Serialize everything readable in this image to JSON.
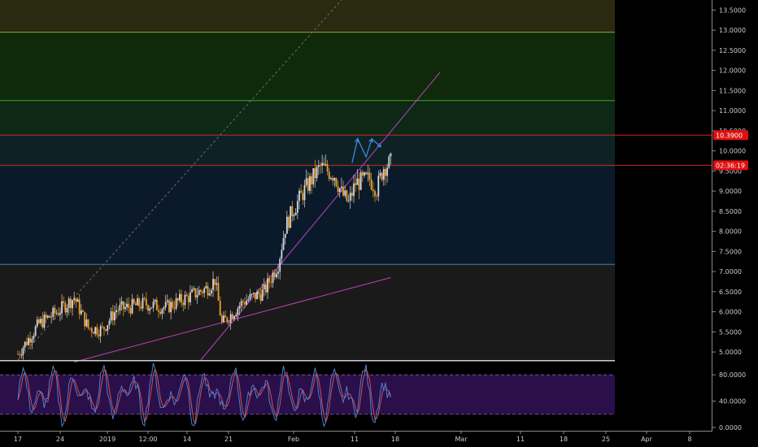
{
  "colors": {
    "background": "#000000",
    "candle_up": "#d8d8d8",
    "candle_down": "#f0a030",
    "trendline": "#c040c0",
    "projection": "#3f8fe0",
    "stoch_k": "#4a7fd0",
    "stoch_d": "#d05050",
    "stoch_band": "#2a0f4a",
    "zone_top": "#2a2a10",
    "zone_upper": "#0f2a0a",
    "zone_mid": "#0d2814",
    "zone_teal": "#0e2226",
    "zone_blue": "#0b1a2a",
    "zone_bottom": "#1a1a1a",
    "line_yellow": "#9aa030",
    "line_green": "#3faa2a",
    "line_red": "#c62828",
    "line_blue": "#3e7faa",
    "badge_red": "#e01010"
  },
  "price_axis": {
    "ticks": [
      "13.5000",
      "13.0000",
      "12.5000",
      "12.0000",
      "11.5000",
      "11.0000",
      "10.5000",
      "10.0000",
      "9.5000",
      "9.0000",
      "8.5000",
      "8.0000",
      "7.5000",
      "7.0000",
      "6.5000",
      "6.0000",
      "5.5000",
      "5.0000"
    ],
    "badges": [
      {
        "label": "10.3900",
        "value": 10.39
      },
      {
        "label": "02:36:19",
        "value": 9.64
      }
    ]
  },
  "stoch_axis": {
    "ticks": [
      "80.0000",
      "40.0000",
      "0.0000"
    ]
  },
  "time_axis": {
    "ticks": [
      "17",
      "24",
      "2019",
      "12:00",
      "14",
      "21",
      "Feb",
      "11",
      "18",
      "Mar",
      "11",
      "18",
      "25",
      "Apr",
      "8"
    ]
  },
  "chart_data": {
    "type": "candlestick",
    "symbol_pane": {
      "ylim": [
        4.8,
        13.75
      ],
      "horizontal_levels": [
        12.95,
        11.25,
        10.39,
        9.64,
        7.18
      ],
      "zones": [
        {
          "from": 12.95,
          "to": 13.75,
          "color": "zone_top"
        },
        {
          "from": 11.25,
          "to": 12.95,
          "color": "zone_upper"
        },
        {
          "from": 10.39,
          "to": 11.25,
          "color": "zone_mid"
        },
        {
          "from": 9.6,
          "to": 10.39,
          "color": "zone_teal"
        },
        {
          "from": 7.18,
          "to": 9.6,
          "color": "zone_blue"
        },
        {
          "from": 4.8,
          "to": 7.18,
          "color": "zone_bottom"
        }
      ],
      "trend_anchor_points": [
        {
          "day": 0,
          "close": 4.95
        },
        {
          "day": 3,
          "close": 5.7
        },
        {
          "day": 6,
          "close": 6.05
        },
        {
          "day": 8,
          "close": 6.35
        },
        {
          "day": 10,
          "close": 5.6
        },
        {
          "day": 12,
          "close": 5.55
        },
        {
          "day": 14,
          "close": 6.05
        },
        {
          "day": 18,
          "close": 6.2
        },
        {
          "day": 21,
          "close": 6.1
        },
        {
          "day": 24,
          "close": 6.35
        },
        {
          "day": 27,
          "close": 6.6
        },
        {
          "day": 28,
          "close": 6.8
        },
        {
          "day": 29,
          "close": 5.7
        },
        {
          "day": 32,
          "close": 6.25
        },
        {
          "day": 35,
          "close": 6.5
        },
        {
          "day": 37,
          "close": 7.2
        },
        {
          "day": 38,
          "close": 8.1
        },
        {
          "day": 39,
          "close": 8.5
        },
        {
          "day": 41,
          "close": 9.1
        },
        {
          "day": 43,
          "close": 9.6
        },
        {
          "day": 45,
          "close": 9.4
        },
        {
          "day": 46,
          "close": 8.95
        },
        {
          "day": 47,
          "close": 8.7
        },
        {
          "day": 48,
          "close": 9.2
        },
        {
          "day": 50,
          "close": 9.3
        },
        {
          "day": 51,
          "close": 9.05
        },
        {
          "day": 52,
          "close": 9.6
        },
        {
          "day": 53,
          "close": 9.7
        }
      ],
      "trendlines": [
        {
          "from": {
            "day": 8,
            "price": 4.75
          },
          "to": {
            "day": 53,
            "price": 6.85
          }
        },
        {
          "from": {
            "day": 26,
            "price": 4.8
          },
          "to": {
            "day": 60,
            "price": 11.95
          }
        },
        {
          "from": {
            "day": 0,
            "price": 4.8
          },
          "to": {
            "day": 46,
            "price": 13.75
          },
          "dashed": true
        }
      ],
      "projection_path": [
        {
          "day": 47.5,
          "price": 9.7
        },
        {
          "day": 48.3,
          "price": 10.3
        },
        {
          "day": 49.5,
          "price": 9.85
        },
        {
          "day": 50.3,
          "price": 10.3
        },
        {
          "day": 51.6,
          "price": 10.1
        }
      ]
    },
    "stochastic_pane": {
      "ylim": [
        -5,
        100
      ],
      "band": [
        20,
        80
      ]
    }
  }
}
